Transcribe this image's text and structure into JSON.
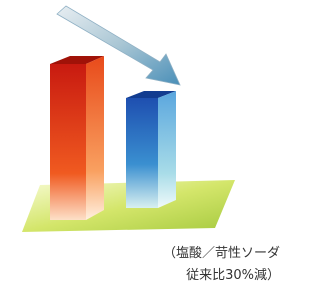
{
  "caption": {
    "line1": "（塩酸／苛性ソーダ",
    "line2": "従来比30%減）"
  }
}
